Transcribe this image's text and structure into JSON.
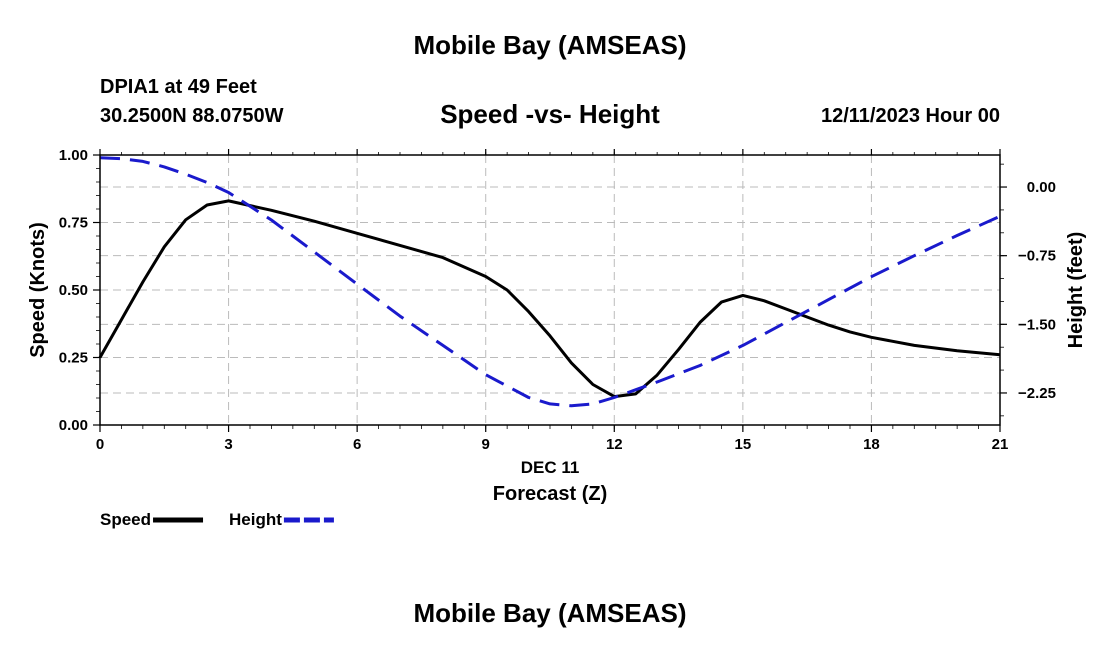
{
  "header": {
    "title": "Mobile Bay (AMSEAS)",
    "station": "DPIA1 at 49 Feet",
    "coordinates": "30.2500N  88.0750W",
    "subtitle": "Speed -vs- Height",
    "date": "12/11/2023 Hour 00"
  },
  "footer": {
    "title": "Mobile Bay (AMSEAS)"
  },
  "chart_data": {
    "type": "line",
    "title": "Speed -vs- Height",
    "xlabel": "Forecast (Z)",
    "xsublabel": "DEC 11",
    "ylabel": "Speed (Knots)",
    "y2label": "Height (feet)",
    "xlim": [
      0,
      21
    ],
    "ylim": [
      0,
      1
    ],
    "y2lim": [
      -2.6,
      0.35
    ],
    "xticks": [
      0,
      3,
      6,
      9,
      12,
      15,
      18,
      21
    ],
    "yticks": [
      0,
      0.25,
      0.5,
      0.75,
      1.0
    ],
    "ytick_labels": [
      "0.00",
      "0.25",
      "0.50",
      "0.75",
      "1.00"
    ],
    "y2ticks": [
      0,
      -0.75,
      -1.5,
      -2.25
    ],
    "y2tick_labels": [
      "0.00",
      "−0.75",
      "−1.50",
      "−2.25"
    ],
    "grid": true,
    "legend": [
      {
        "name": "Speed",
        "color": "#000000",
        "style": "solid"
      },
      {
        "name": "Height",
        "color": "#1a1acc",
        "style": "dashed"
      }
    ],
    "series": [
      {
        "name": "Speed",
        "axis": "left",
        "color": "#000000",
        "style": "solid",
        "x": [
          0,
          0.5,
          1,
          1.5,
          2,
          2.5,
          3,
          4,
          5,
          6,
          7,
          8,
          9,
          9.5,
          10,
          10.5,
          11,
          11.5,
          12,
          12.5,
          13,
          13.5,
          14,
          14.5,
          15,
          15.5,
          16,
          16.5,
          17,
          17.5,
          18,
          19,
          20,
          21
        ],
        "values": [
          0.25,
          0.39,
          0.53,
          0.66,
          0.76,
          0.815,
          0.83,
          0.795,
          0.755,
          0.71,
          0.665,
          0.62,
          0.55,
          0.5,
          0.42,
          0.33,
          0.23,
          0.15,
          0.105,
          0.115,
          0.185,
          0.28,
          0.38,
          0.455,
          0.48,
          0.46,
          0.43,
          0.4,
          0.37,
          0.345,
          0.325,
          0.295,
          0.275,
          0.26
        ]
      },
      {
        "name": "Height",
        "axis": "right",
        "color": "#1a1acc",
        "style": "dashed",
        "x": [
          0,
          0.5,
          1,
          1.5,
          2,
          2.5,
          3,
          4,
          5,
          6,
          7,
          8,
          9,
          10,
          10.5,
          11,
          11.5,
          12,
          13,
          14,
          15,
          16,
          17,
          18,
          19,
          20,
          21
        ],
        "values": [
          0.32,
          0.31,
          0.28,
          0.22,
          0.14,
          0.05,
          -0.06,
          -0.36,
          -0.71,
          -1.06,
          -1.41,
          -1.73,
          -2.05,
          -2.3,
          -2.37,
          -2.39,
          -2.37,
          -2.3,
          -2.13,
          -1.95,
          -1.73,
          -1.48,
          -1.23,
          -0.98,
          -0.75,
          -0.53,
          -0.32
        ]
      }
    ]
  }
}
